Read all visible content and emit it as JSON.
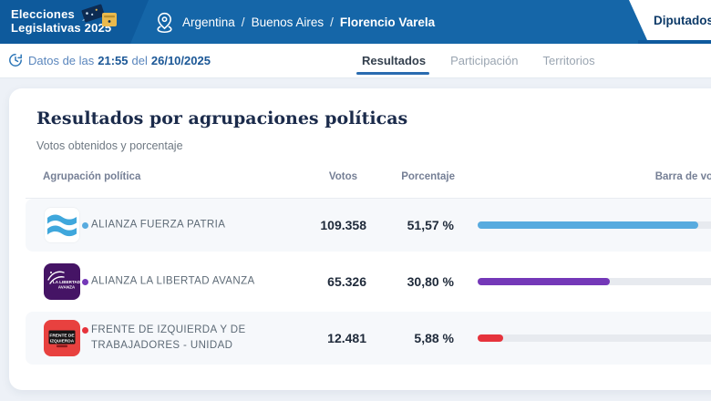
{
  "theme": {
    "header_blue": "#1566a8",
    "header_dark_blue": "#0e5a9c",
    "tab_line_blue": "#0f5a9e",
    "accent_blue": "#2a6cb0",
    "link_blue": "#1b5796",
    "muted_blue": "#5a86bd",
    "page_bg": "#edf1f7",
    "card_bg": "#ffffff",
    "stripe_bg": "#f6f8fb",
    "track": "#e7eaef",
    "title_navy": "#1b2b4b",
    "text_gray": "#5d6a76",
    "heading_gray": "#757f95",
    "number_dark": "#1f2a3a",
    "inactive_tab": "#9aa5b1",
    "cat_tab_text": "#0d3a68"
  },
  "header": {
    "logo": {
      "line1": "Elecciones",
      "line2": "Legislativas 2025"
    },
    "breadcrumb": {
      "items": [
        "Argentina",
        "Buenos Aires",
        "Florencio Varela"
      ],
      "separator": "/"
    },
    "category_tab": "Diputados"
  },
  "statusbar": {
    "prefix": "Datos de las",
    "time": "21:55",
    "middle": "del",
    "date": "26/10/2025",
    "tabs": [
      {
        "label": "Resultados",
        "active": true
      },
      {
        "label": "Participación",
        "active": false
      },
      {
        "label": "Territorios",
        "active": false
      }
    ]
  },
  "main": {
    "title": "Resultados por agrupaciones políticas",
    "subtitle": "Votos obtenidos y porcentaje",
    "table": {
      "columns": [
        "Agrupación política",
        "Votos",
        "Porcentaje",
        "Barra de votos"
      ],
      "rows": [
        {
          "party": "ALIANZA FUERZA PATRIA",
          "votes": "109.358",
          "percent": "51,57 %",
          "percent_value": 51.57,
          "color": "#58abdf",
          "logo": "fuerza-patria"
        },
        {
          "party": "ALIANZA LA LIBERTAD AVANZA",
          "votes": "65.326",
          "percent": "30,80 %",
          "percent_value": 30.8,
          "color": "#7438b8",
          "logo": "la-libertad-avanza",
          "logo_lines": [
            "LA LIBERTAD",
            "AVANZA"
          ]
        },
        {
          "party": "FRENTE DE IZQUIERDA Y DE TRABAJADORES - UNIDAD",
          "votes": "12.481",
          "percent": "5,88 %",
          "percent_value": 5.88,
          "color": "#e6333c",
          "logo": "frente-de-izquierda",
          "logo_lines": [
            "FRENTE DE",
            "IZQUIERDA"
          ]
        }
      ]
    }
  }
}
